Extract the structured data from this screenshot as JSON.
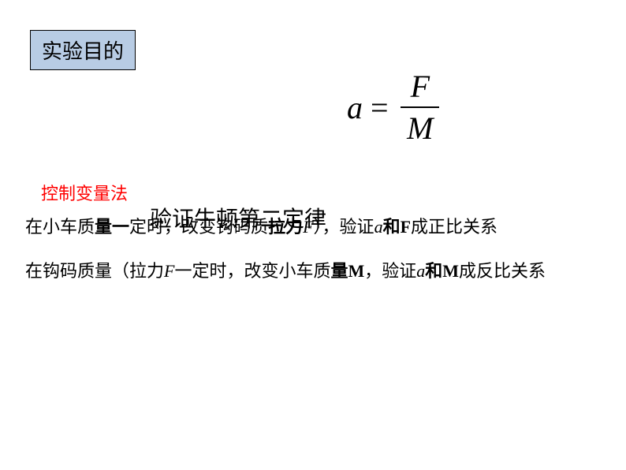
{
  "title_box": "实验目的",
  "formula": {
    "lhs": "a",
    "eq": "=",
    "numerator": "F",
    "denominator": "M"
  },
  "red_label": "控制变量法",
  "center_title": "验证牛顿第二定律",
  "line1": {
    "seg1": "在小车质",
    "seg2": "量一",
    "seg3": "定时，改变钩码质",
    "seg4": "拉力",
    "seg5": "F",
    "seg6": "）",
    "seg7": "，",
    "seg8": "验证",
    "seg9": "a",
    "seg10": "和F",
    "seg11": "成正比关系"
  },
  "line2": {
    "seg1": "在钩码质量（拉力",
    "seg2": "F",
    "seg3": "一定时，改变小车质",
    "seg4": "量M",
    "seg5": "，",
    "seg6": "验证",
    "seg7": "a",
    "seg8": "和M",
    "seg9": "成反比关系"
  },
  "colors": {
    "title_box_bg": "#b8cce4",
    "title_box_border": "#000000",
    "red": "#ff0000",
    "black": "#000000",
    "background": "#ffffff"
  },
  "fonts": {
    "body_family": "SimSun",
    "math_family": "Times New Roman",
    "title_size": 26,
    "formula_size": 40,
    "label_size": 22,
    "center_title_size": 28,
    "body_size": 22
  }
}
